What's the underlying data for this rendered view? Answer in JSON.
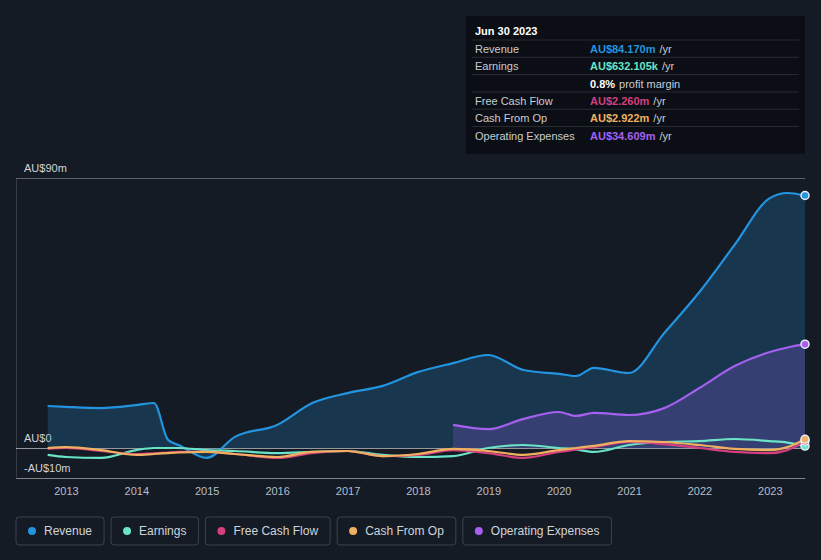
{
  "chart_data": {
    "type": "line",
    "x": [
      2012.74,
      2013.0,
      2013.5,
      2014.0,
      2014.25,
      2014.45,
      2014.6,
      2015.0,
      2015.4,
      2016.0,
      2016.5,
      2017.0,
      2017.5,
      2018.0,
      2018.5,
      2019.0,
      2019.5,
      2020.0,
      2020.25,
      2020.5,
      2021.0,
      2021.5,
      2022.0,
      2022.5,
      2023.0,
      2023.25,
      2023.5
    ],
    "xlim": [
      2012.29,
      2023.5
    ],
    "xticks": [
      2013,
      2014,
      2015,
      2016,
      2017,
      2018,
      2019,
      2020,
      2021,
      2022,
      2023
    ],
    "ylim": [
      -10,
      90
    ],
    "yticks": [
      {
        "value": 90,
        "label": "AU$90m"
      },
      {
        "value": 0,
        "label": "AU$0"
      },
      {
        "value": -10,
        "label": "-AU$10m"
      }
    ],
    "grid": true,
    "legend": "bottom-left",
    "series": [
      {
        "name": "Revenue",
        "color": "#2394df",
        "type": "area",
        "values": [
          14,
          13.7,
          13.3,
          14.3,
          15,
          2.7,
          1,
          -3.3,
          3.7,
          7.7,
          15,
          18.3,
          20.7,
          25.3,
          28.3,
          31,
          26,
          24.7,
          24,
          26.7,
          25,
          38.3,
          52,
          67.7,
          83.3,
          85,
          84.17
        ]
      },
      {
        "name": "Earnings",
        "color": "#6ae3c7",
        "type": "line",
        "values": [
          -2.3,
          -3,
          -3.3,
          -0.7,
          0,
          0,
          0,
          -0.7,
          -1,
          -1.7,
          -1.3,
          -1,
          -2.3,
          -3,
          -2.7,
          0,
          1,
          0,
          -0.5,
          -1.3,
          1,
          2,
          2.3,
          3,
          2.3,
          1.8,
          0.63
        ]
      },
      {
        "name": "Free Cash Flow",
        "color": "#d33f7f",
        "type": "line",
        "values": [
          -0.3,
          0,
          -1,
          -2,
          -1.8,
          -1.5,
          -1.3,
          -1.3,
          -2,
          -3.3,
          -1.7,
          -1,
          -2.7,
          -2.3,
          -0.7,
          -1.7,
          -3.3,
          -1.3,
          -0.5,
          0.3,
          2,
          1.3,
          0,
          -1.3,
          -1.7,
          -0.7,
          2.26
        ]
      },
      {
        "name": "Cash From Op",
        "color": "#f0b060",
        "type": "line",
        "values": [
          0,
          0.3,
          -0.7,
          -2.3,
          -2,
          -1.7,
          -1.5,
          -1.3,
          -2,
          -3,
          -1.3,
          -1,
          -2.7,
          -2,
          -0.3,
          -1,
          -2.3,
          -0.7,
          0,
          0.7,
          2.3,
          2,
          1,
          -0.3,
          -0.7,
          0.3,
          2.92
        ]
      },
      {
        "name": "Operating Expenses",
        "color": "#a560f0",
        "type": "area",
        "values": [
          null,
          null,
          null,
          null,
          null,
          null,
          null,
          null,
          null,
          null,
          null,
          null,
          null,
          null,
          7.7,
          6.3,
          9.7,
          12,
          10.7,
          11.7,
          11,
          13.3,
          20,
          27.3,
          32,
          33.5,
          34.61
        ]
      }
    ],
    "tooltip": {
      "title": "Jun 30 2023",
      "rows": [
        {
          "label": "Revenue",
          "value": "AU$84.170m",
          "unit": "/yr",
          "color": "#2394df"
        },
        {
          "label": "Earnings",
          "value": "AU$632.105k",
          "unit": "/yr",
          "color": "#6ae3c7"
        },
        {
          "value": "0.8%",
          "unit": "profit margin",
          "color": "#ffffff"
        },
        {
          "label": "Free Cash Flow",
          "value": "AU$2.260m",
          "unit": "/yr",
          "color": "#d33f7f"
        },
        {
          "label": "Cash From Op",
          "value": "AU$2.922m",
          "unit": "/yr",
          "color": "#f0b060"
        },
        {
          "label": "Operating Expenses",
          "value": "AU$34.609m",
          "unit": "/yr",
          "color": "#a560f0"
        }
      ]
    }
  }
}
